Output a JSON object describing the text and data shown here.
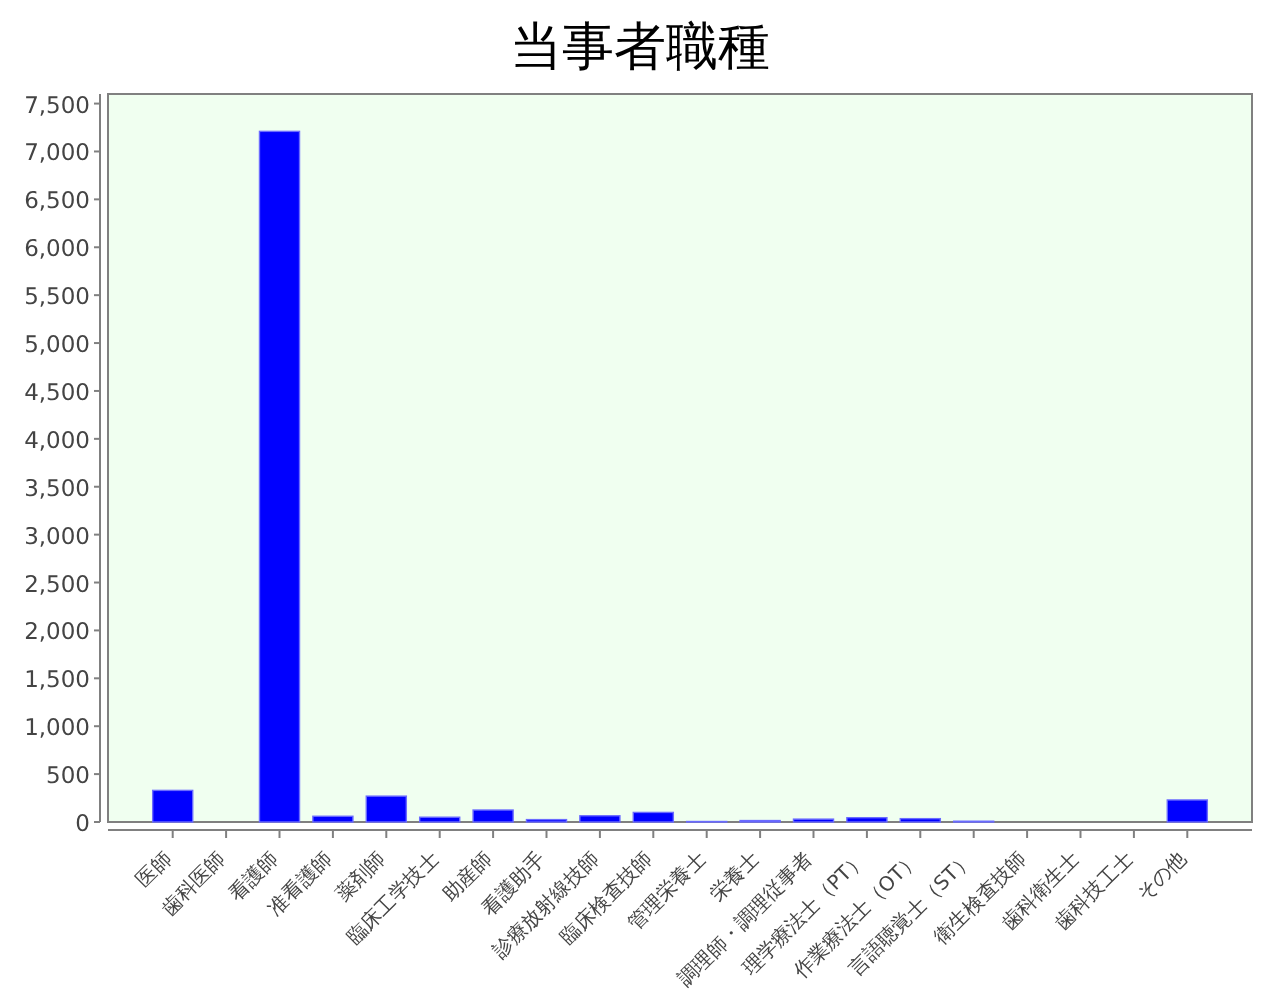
{
  "chart_data": {
    "type": "bar",
    "title": "当事者職種",
    "categories": [
      "医師",
      "歯科医師",
      "看護師",
      "准看護師",
      "薬剤師",
      "臨床工学技士",
      "助産師",
      "看護助手",
      "診療放射線技師",
      "臨床検査技師",
      "管理栄養士",
      "栄養士",
      "調理師・調理従事者",
      "理学療法士（PT）",
      "作業療法士（OT）",
      "言語聴覚士（ST）",
      "衛生検査技師",
      "歯科衛生士",
      "歯科技工士",
      "その他"
    ],
    "values": [
      330,
      0,
      7210,
      60,
      270,
      50,
      125,
      25,
      65,
      100,
      5,
      15,
      30,
      45,
      35,
      8,
      0,
      0,
      0,
      230
    ],
    "color": "#0000ff",
    "ylim": [
      0,
      7600
    ],
    "yticks": [
      0,
      500,
      {
        "value": 1000,
        "label": "1,000"
      },
      {
        "value": 1500,
        "label": "1,500"
      },
      {
        "value": 2000,
        "label": "2,000"
      },
      {
        "value": 2500,
        "label": "2,500"
      },
      {
        "value": 3000,
        "label": "3,000"
      },
      {
        "value": 3500,
        "label": "3,500"
      },
      {
        "value": 4000,
        "label": "4,000"
      },
      {
        "value": 4500,
        "label": "4,500"
      },
      {
        "value": 5000,
        "label": "5,000"
      },
      {
        "value": 5500,
        "label": "5,500"
      },
      {
        "value": 6000,
        "label": "6,000"
      },
      {
        "value": 6500,
        "label": "6,500"
      },
      {
        "value": 7000,
        "label": "7,000"
      },
      {
        "value": 7500,
        "label": "7,500"
      }
    ]
  }
}
